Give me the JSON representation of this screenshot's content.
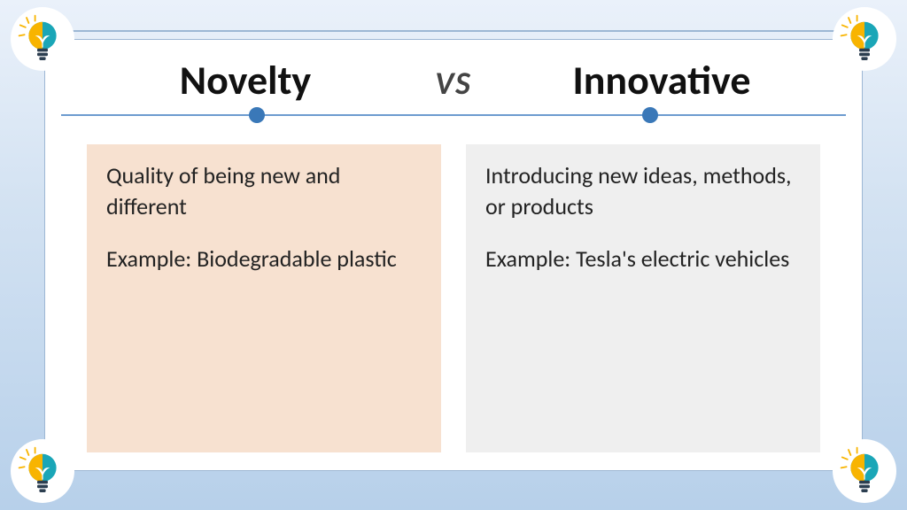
{
  "headings": {
    "left": "Novelty",
    "vs": "VS",
    "right": "Innovative"
  },
  "columns": {
    "left": {
      "definition": "Quality of being new and different",
      "example": "Example: Biodegradable plastic",
      "background_color": "#f7e1d0"
    },
    "right": {
      "definition": "Introducing new ideas, methods, or products",
      "example": "Example: Tesla's electric vehicles",
      "background_color": "#efefef"
    }
  },
  "styling": {
    "slide_background_gradient": [
      "#eaf1fa",
      "#d3e2f2",
      "#b7d0ea"
    ],
    "frame_background": "#ffffff",
    "frame_border_color": "#9db7d4",
    "divider_line_color": "#6d9bcf",
    "divider_dot_color": "#3a78b8",
    "heading_fontsize_pt": 34,
    "vs_fontsize_pt": 27,
    "body_fontsize_pt": 20,
    "heading_color": "#111111",
    "vs_color": "#444444",
    "body_text_color": "#222222"
  },
  "icon": {
    "name": "eco-lightbulb-logo",
    "circle_bg": "#ffffff",
    "sun_color": "#f8b400",
    "globe_color": "#1aa6b7",
    "leaf_color": "#ffffff",
    "bulb_base_color": "#2c3e50",
    "ray_color": "#f8b400"
  }
}
